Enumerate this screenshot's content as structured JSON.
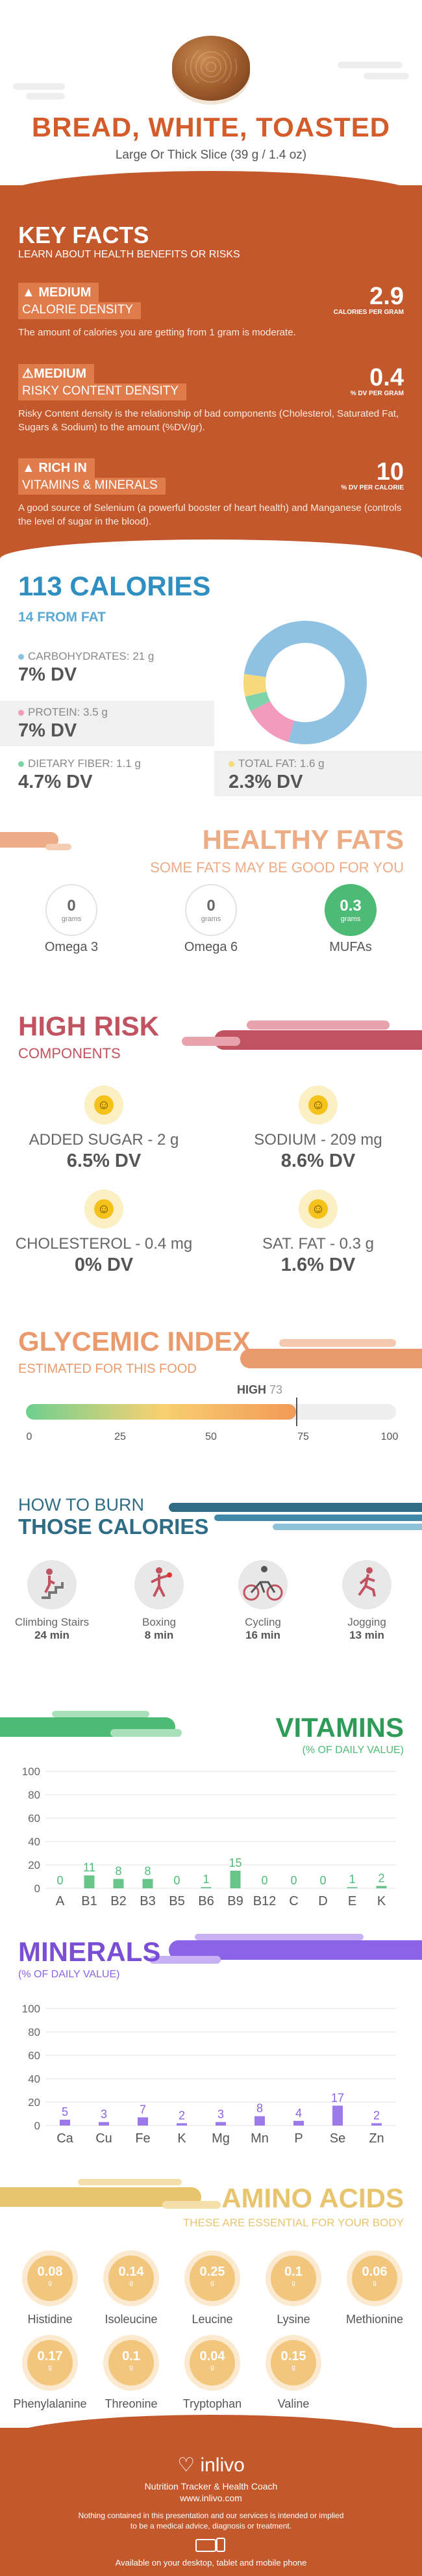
{
  "header": {
    "title": "BREAD, WHITE, TOASTED",
    "subtitle": "Large Or Thick Slice (39 g / 1.4 oz)"
  },
  "key_facts": {
    "title": "KEY FACTS",
    "subtitle": "LEARN ABOUT HEALTH BENEFITS OR RISKS",
    "items": [
      {
        "level": "MEDIUM",
        "label": "CALORIE DENSITY",
        "value": "2.9",
        "unit": "CALORIES PER GRAM",
        "desc": "The amount of calories you are getting from 1 gram is moderate.",
        "icon": "flame-icon"
      },
      {
        "level": "MEDIUM",
        "label": "RISKY CONTENT DENSITY",
        "value": "0.4",
        "unit": "% DV PER GRAM",
        "desc": "Risky Content density is the relationship of bad components (Cholesterol, Saturated Fat, Sugars & Sodium) to the amount (%DV/gr).",
        "icon": "warning-icon"
      },
      {
        "level": "RICH  IN",
        "label": "VITAMINS & MINERALS",
        "value": "10",
        "unit": "% DV PER CALORIE",
        "desc": "A good source of Selenium (a powerful booster of heart health) and Manganese (controls the level of sugar in the blood).",
        "icon": "flame-icon"
      }
    ]
  },
  "calories": {
    "title": "113 CALORIES",
    "subtitle": "14 FROM FAT",
    "nutrients": [
      {
        "label": "CARBOHYDRATES: 21 g",
        "dv": "7% DV",
        "color": "#8fc1e3"
      },
      {
        "label": "PROTEIN: 3.5 g",
        "dv": "7% DV",
        "color": "#f29bbd"
      },
      {
        "label": "DIETARY FIBER: 1.1 g",
        "dv": "4.7% DV",
        "color": "#7ed3a8"
      },
      {
        "label": "TOTAL FAT: 1.6 g",
        "dv": "2.3% DV",
        "color": "#f5d97a"
      }
    ],
    "donut": [
      {
        "value": 21,
        "color": "#8fc1e3"
      },
      {
        "value": 3.5,
        "color": "#f29bbd"
      },
      {
        "value": 1.1,
        "color": "#7ed3a8"
      },
      {
        "value": 1.6,
        "color": "#f5d97a"
      }
    ]
  },
  "healthy_fats": {
    "title": "HEALTHY FATS",
    "subtitle": "SOME FATS MAY BE GOOD FOR YOU",
    "items": [
      {
        "value": "0",
        "unit": "grams",
        "name": "Omega 3"
      },
      {
        "value": "0",
        "unit": "grams",
        "name": "Omega 6"
      },
      {
        "value": "0.3",
        "unit": "grams",
        "name": "MUFAs"
      }
    ]
  },
  "high_risk": {
    "title": "HIGH RISK",
    "subtitle": "COMPONENTS",
    "items": [
      {
        "label": "ADDED SUGAR - 2 g",
        "dv": "6.5% DV"
      },
      {
        "label": "SODIUM - 209 mg",
        "dv": "8.6% DV"
      },
      {
        "label": "CHOLESTEROL - 0.4 mg",
        "dv": "0% DV"
      },
      {
        "label": "SAT. FAT - 0.3 g",
        "dv": "1.6% DV"
      }
    ]
  },
  "glycemic": {
    "title": "GLYCEMIC INDEX",
    "subtitle": "ESTIMATED FOR THIS FOOD",
    "level": "HIGH",
    "value": "73",
    "value_num": 73,
    "ticks": [
      "0",
      "25",
      "50",
      "75",
      "100"
    ]
  },
  "burn": {
    "title1": "HOW TO BURN",
    "title2": "THOSE CALORIES",
    "activities": [
      {
        "name": "Climbing Stairs",
        "time": "24 min"
      },
      {
        "name": "Boxing",
        "time": "8 min"
      },
      {
        "name": "Cycling",
        "time": "16 min"
      },
      {
        "name": "Jogging",
        "time": "13 min"
      }
    ]
  },
  "vitamins": {
    "title": "VITAMINS",
    "subtitle": "(% OF DAILY VALUE)"
  },
  "minerals": {
    "title": "MINERALS",
    "subtitle": "(% OF DAILY VALUE)"
  },
  "chart_data": [
    {
      "type": "bar",
      "title": "VITAMINS",
      "ylim": [
        0,
        100
      ],
      "yticks": [
        0,
        20,
        40,
        60,
        80,
        100
      ],
      "categories": [
        "A",
        "B1",
        "B2",
        "B3",
        "B5",
        "B6",
        "B9",
        "B12",
        "C",
        "D",
        "E",
        "K"
      ],
      "values": [
        0,
        11,
        8,
        8,
        0,
        1,
        15,
        0,
        0,
        0,
        1,
        2
      ],
      "color": "#4dbb75"
    },
    {
      "type": "bar",
      "title": "MINERALS",
      "ylim": [
        0,
        100
      ],
      "yticks": [
        0,
        20,
        40,
        60,
        80,
        100
      ],
      "categories": [
        "Ca",
        "Cu",
        "Fe",
        "K",
        "Mg",
        "Mn",
        "P",
        "Se",
        "Zn"
      ],
      "values": [
        5,
        3,
        7,
        2,
        3,
        8,
        4,
        17,
        2
      ],
      "color": "#8b63e6"
    }
  ],
  "amino": {
    "title": "AMINO ACIDS",
    "subtitle": "THESE ARE ESSENTIAL FOR YOUR BODY",
    "items": [
      {
        "value": "0.08",
        "unit": "g",
        "name": "Histidine"
      },
      {
        "value": "0.14",
        "unit": "g",
        "name": "Isoleucine"
      },
      {
        "value": "0.25",
        "unit": "g",
        "name": "Leucine"
      },
      {
        "value": "0.1",
        "unit": "g",
        "name": "Lysine"
      },
      {
        "value": "0.06",
        "unit": "g",
        "name": "Methionine"
      },
      {
        "value": "0.17",
        "unit": "g",
        "name": "Phenylalanine"
      },
      {
        "value": "0.1",
        "unit": "g",
        "name": "Threonine"
      },
      {
        "value": "0.04",
        "unit": "g",
        "name": "Tryptophan"
      },
      {
        "value": "0.15",
        "unit": "g",
        "name": "Valine"
      }
    ]
  },
  "footer": {
    "brand": "inlivo",
    "tagline": "Nutrition Tracker & Health Coach",
    "url": "www.inlivo.com",
    "disclaimer1": "Nothing contained in this presentation and our services is intended or implied",
    "disclaimer2": "to be a medical advice, diagnosis or treatment.",
    "available": "Available on your desktop, tablet and mobile phone"
  }
}
